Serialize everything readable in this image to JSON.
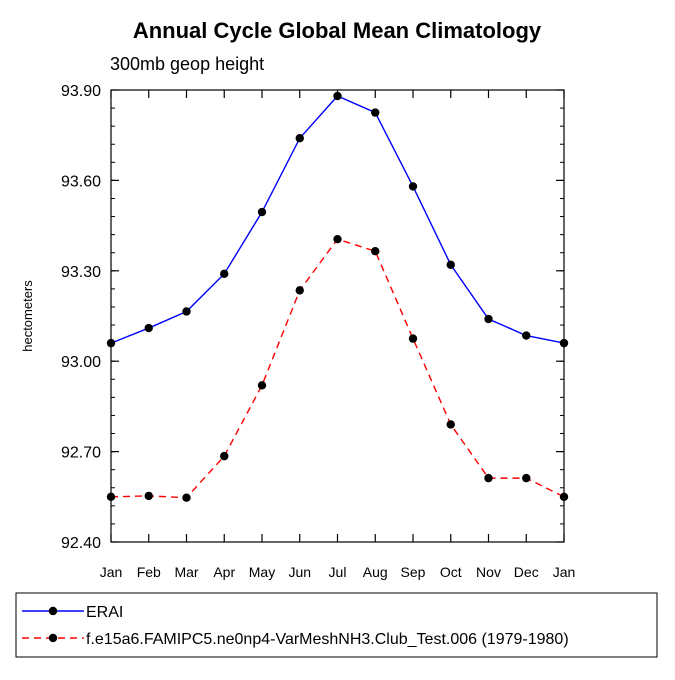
{
  "chart_data": {
    "type": "line",
    "title": "Annual Cycle Global Mean Climatology",
    "subtitle": "300mb geop height",
    "xlabel": "",
    "ylabel": "hectometers",
    "categories": [
      "Jan",
      "Feb",
      "Mar",
      "Apr",
      "May",
      "Jun",
      "Jul",
      "Aug",
      "Sep",
      "Oct",
      "Nov",
      "Dec",
      "Jan"
    ],
    "ylim": [
      92.4,
      93.9
    ],
    "yticks": [
      "93.90",
      "93.60",
      "93.30",
      "93.00",
      "92.70",
      "92.40"
    ],
    "grid": false,
    "legend_position": "bottom",
    "series": [
      {
        "name": "ERAI",
        "color": "#0000ff",
        "line_style": "solid",
        "marker": "filled-circle",
        "values": [
          93.06,
          93.11,
          93.165,
          93.29,
          93.495,
          93.74,
          93.88,
          93.825,
          93.58,
          93.32,
          93.14,
          93.085,
          93.06
        ]
      },
      {
        "name": "f.e15a6.FAMIPC5.ne0np4-VarMeshNH3.Club_Test.006 (1979-1980)",
        "color": "#ff0000",
        "line_style": "dashed",
        "marker": "filled-circle",
        "values": [
          92.55,
          92.553,
          92.547,
          92.685,
          92.92,
          93.235,
          93.405,
          93.365,
          93.075,
          92.79,
          92.612,
          92.612,
          92.55
        ]
      }
    ]
  }
}
